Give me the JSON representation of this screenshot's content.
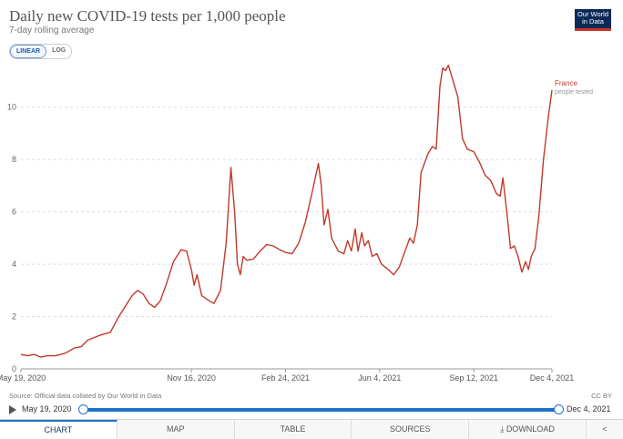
{
  "header": {
    "title": "Daily new COVID-19 tests per 1,000 people",
    "subtitle": "7-day rolling average",
    "logo_line1": "Our World",
    "logo_line2": "in Data"
  },
  "scale_toggle": {
    "linear": "LINEAR",
    "log": "LOG",
    "selected": "LINEAR"
  },
  "footer": {
    "source": "Source: Official data collated by Our World in Data",
    "license": "CC BY"
  },
  "timeline": {
    "start": "May 19, 2020",
    "end": "Dec 4, 2021"
  },
  "tabs": [
    "CHART",
    "MAP",
    "TABLE",
    "SOURCES",
    "DOWNLOAD"
  ],
  "colors": {
    "series": "#c0392b",
    "grid": "#dddddd",
    "accent": "#1d73c9"
  },
  "chart_data": {
    "type": "line",
    "title": "Daily new COVID-19 tests per 1,000 people",
    "subtitle": "7-day rolling average",
    "xlabel": "",
    "ylabel": "",
    "x_range": [
      "2020-05-19",
      "2021-12-04"
    ],
    "ylim": [
      0,
      11.8
    ],
    "y_ticks": [
      0,
      2,
      4,
      6,
      8,
      10
    ],
    "x_ticks": [
      {
        "date": "2020-05-19",
        "label": "May 19, 2020"
      },
      {
        "date": "2020-11-16",
        "label": "Nov 16, 2020"
      },
      {
        "date": "2021-02-24",
        "label": "Feb 24, 2021"
      },
      {
        "date": "2021-06-04",
        "label": "Jun 4, 2021"
      },
      {
        "date": "2021-09-12",
        "label": "Sep 12, 2021"
      },
      {
        "date": "2021-12-04",
        "label": "Dec 4, 2021"
      }
    ],
    "grid": "horizontal",
    "series": [
      {
        "name": "France",
        "label_sub": "people tested",
        "points": [
          [
            "2020-05-19",
            0.55
          ],
          [
            "2020-05-26",
            0.5
          ],
          [
            "2020-06-02",
            0.55
          ],
          [
            "2020-06-09",
            0.45
          ],
          [
            "2020-06-16",
            0.5
          ],
          [
            "2020-06-25",
            0.5
          ],
          [
            "2020-07-05",
            0.6
          ],
          [
            "2020-07-15",
            0.8
          ],
          [
            "2020-07-22",
            0.85
          ],
          [
            "2020-07-29",
            1.1
          ],
          [
            "2020-08-05",
            1.2
          ],
          [
            "2020-08-12",
            1.3
          ],
          [
            "2020-08-22",
            1.4
          ],
          [
            "2020-08-31",
            2.0
          ],
          [
            "2020-09-07",
            2.4
          ],
          [
            "2020-09-14",
            2.8
          ],
          [
            "2020-09-20",
            3.0
          ],
          [
            "2020-09-26",
            2.85
          ],
          [
            "2020-10-02",
            2.5
          ],
          [
            "2020-10-08",
            2.35
          ],
          [
            "2020-10-14",
            2.6
          ],
          [
            "2020-10-21",
            3.3
          ],
          [
            "2020-10-28",
            4.1
          ],
          [
            "2020-11-05",
            4.55
          ],
          [
            "2020-11-11",
            4.5
          ],
          [
            "2020-11-16",
            3.8
          ],
          [
            "2020-11-19",
            3.2
          ],
          [
            "2020-11-22",
            3.6
          ],
          [
            "2020-11-27",
            2.8
          ],
          [
            "2020-12-05",
            2.6
          ],
          [
            "2020-12-10",
            2.5
          ],
          [
            "2020-12-17",
            3.0
          ],
          [
            "2020-12-23",
            4.8
          ],
          [
            "2020-12-28",
            7.7
          ],
          [
            "2021-01-01",
            6.0
          ],
          [
            "2021-01-04",
            4.0
          ],
          [
            "2021-01-07",
            3.6
          ],
          [
            "2021-01-10",
            4.3
          ],
          [
            "2021-01-14",
            4.15
          ],
          [
            "2021-01-21",
            4.2
          ],
          [
            "2021-01-28",
            4.5
          ],
          [
            "2021-02-04",
            4.75
          ],
          [
            "2021-02-11",
            4.7
          ],
          [
            "2021-02-18",
            4.55
          ],
          [
            "2021-02-24",
            4.45
          ],
          [
            "2021-03-03",
            4.4
          ],
          [
            "2021-03-10",
            4.8
          ],
          [
            "2021-03-17",
            5.6
          ],
          [
            "2021-03-24",
            6.7
          ],
          [
            "2021-03-31",
            7.85
          ],
          [
            "2021-04-03",
            7.0
          ],
          [
            "2021-04-06",
            5.5
          ],
          [
            "2021-04-10",
            6.1
          ],
          [
            "2021-04-14",
            5.0
          ],
          [
            "2021-04-21",
            4.5
          ],
          [
            "2021-04-27",
            4.4
          ],
          [
            "2021-05-01",
            4.9
          ],
          [
            "2021-05-05",
            4.5
          ],
          [
            "2021-05-09",
            5.35
          ],
          [
            "2021-05-12",
            4.5
          ],
          [
            "2021-05-16",
            5.2
          ],
          [
            "2021-05-19",
            4.7
          ],
          [
            "2021-05-23",
            4.9
          ],
          [
            "2021-05-27",
            4.3
          ],
          [
            "2021-06-01",
            4.4
          ],
          [
            "2021-06-06",
            4.0
          ],
          [
            "2021-06-13",
            3.8
          ],
          [
            "2021-06-19",
            3.6
          ],
          [
            "2021-06-25",
            3.9
          ],
          [
            "2021-07-01",
            4.5
          ],
          [
            "2021-07-06",
            5.0
          ],
          [
            "2021-07-10",
            4.8
          ],
          [
            "2021-07-14",
            5.5
          ],
          [
            "2021-07-18",
            7.5
          ],
          [
            "2021-07-25",
            8.2
          ],
          [
            "2021-07-30",
            8.5
          ],
          [
            "2021-08-03",
            8.4
          ],
          [
            "2021-08-07",
            10.8
          ],
          [
            "2021-08-10",
            11.5
          ],
          [
            "2021-08-13",
            11.4
          ],
          [
            "2021-08-16",
            11.6
          ],
          [
            "2021-08-21",
            11.0
          ],
          [
            "2021-08-26",
            10.4
          ],
          [
            "2021-08-31",
            8.8
          ],
          [
            "2021-09-05",
            8.4
          ],
          [
            "2021-09-12",
            8.3
          ],
          [
            "2021-09-18",
            7.9
          ],
          [
            "2021-09-24",
            7.4
          ],
          [
            "2021-09-30",
            7.2
          ],
          [
            "2021-10-06",
            6.7
          ],
          [
            "2021-10-10",
            6.6
          ],
          [
            "2021-10-13",
            7.3
          ],
          [
            "2021-10-17",
            6.0
          ],
          [
            "2021-10-21",
            4.6
          ],
          [
            "2021-10-25",
            4.7
          ],
          [
            "2021-10-29",
            4.3
          ],
          [
            "2021-11-02",
            3.7
          ],
          [
            "2021-11-06",
            4.1
          ],
          [
            "2021-11-09",
            3.8
          ],
          [
            "2021-11-12",
            4.3
          ],
          [
            "2021-11-16",
            4.6
          ],
          [
            "2021-11-20",
            5.8
          ],
          [
            "2021-11-25",
            8.0
          ],
          [
            "2021-11-30",
            9.6
          ],
          [
            "2021-12-04",
            10.65
          ]
        ]
      }
    ]
  }
}
